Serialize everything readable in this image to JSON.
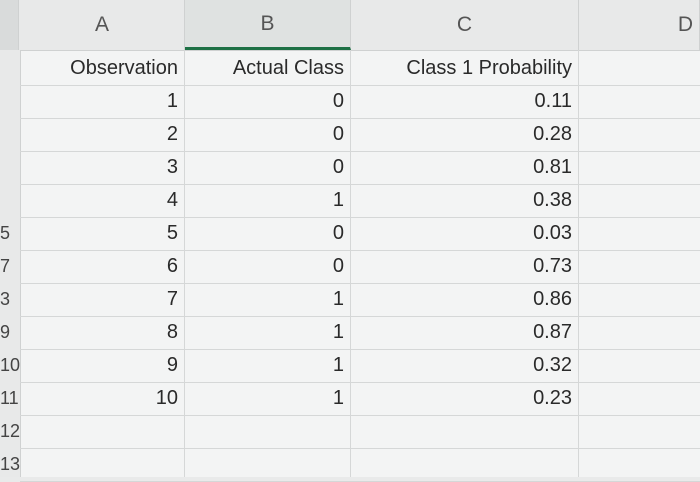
{
  "columns": [
    "A",
    "B",
    "C",
    "D"
  ],
  "row_numbers": [
    "",
    "",
    "",
    "",
    "",
    "5",
    "7",
    "3",
    "9",
    "10",
    "11",
    "12",
    "13"
  ],
  "table": {
    "headers": [
      "Observation",
      "Actual Class",
      "Class 1 Probability"
    ],
    "rows": [
      [
        "1",
        "0",
        "0.11"
      ],
      [
        "2",
        "0",
        "0.28"
      ],
      [
        "3",
        "0",
        "0.81"
      ],
      [
        "4",
        "1",
        "0.38"
      ],
      [
        "5",
        "0",
        "0.03"
      ],
      [
        "6",
        "0",
        "0.73"
      ],
      [
        "7",
        "1",
        "0.86"
      ],
      [
        "8",
        "1",
        "0.87"
      ],
      [
        "9",
        "1",
        "0.32"
      ],
      [
        "10",
        "1",
        "0.23"
      ]
    ]
  },
  "colors": {
    "selected_column_accent": "#1e7145",
    "grid": "#d5d7d7",
    "header_bg": "#e8e9e9"
  }
}
